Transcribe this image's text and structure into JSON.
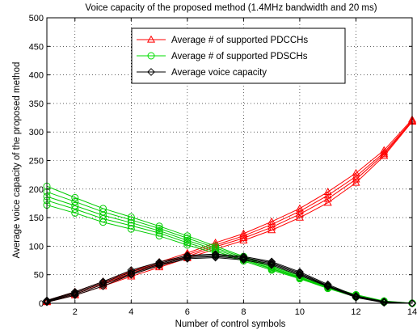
{
  "chart_data": {
    "type": "line",
    "title": "Voice capacity of the proposed method (1.4MHz bandwidth and 20 ms)",
    "xlabel": "Number of control symbols",
    "ylabel": "Average voice capacity of the proposed method",
    "xlim": [
      1,
      14
    ],
    "ylim": [
      0,
      500
    ],
    "xticks": [
      2,
      4,
      6,
      8,
      10,
      12,
      14
    ],
    "yticks": [
      0,
      50,
      100,
      150,
      200,
      250,
      300,
      350,
      400,
      450,
      500
    ],
    "grid": true,
    "legend_position": "top-center",
    "x": [
      1,
      2,
      3,
      4,
      5,
      6,
      7,
      8,
      9,
      10,
      11,
      12,
      13,
      14
    ],
    "legend": [
      {
        "label": "Average # of supported PDCCHs",
        "color": "#ff0000",
        "marker": "triangle"
      },
      {
        "label": "Average # of supported PDSCHs",
        "color": "#00dd00",
        "marker": "circle"
      },
      {
        "label": "Average voice capacity",
        "color": "#000000",
        "marker": "diamond"
      }
    ],
    "series": [
      {
        "group": "PDCCH",
        "color": "#ff0000",
        "marker": "triangle",
        "values": [
          5,
          20,
          38,
          56,
          72,
          88,
          106,
          122,
          143,
          166,
          195,
          228,
          268,
          322
        ]
      },
      {
        "group": "PDCCH",
        "color": "#ff0000",
        "marker": "triangle",
        "values": [
          4,
          18,
          35,
          53,
          69,
          85,
          102,
          118,
          138,
          161,
          189,
          222,
          264,
          320
        ]
      },
      {
        "group": "PDCCH",
        "color": "#ff0000",
        "marker": "triangle",
        "values": [
          3,
          16,
          33,
          50,
          66,
          82,
          99,
          114,
          133,
          156,
          183,
          217,
          261,
          319
        ]
      },
      {
        "group": "PDCCH",
        "color": "#ff0000",
        "marker": "triangle",
        "values": [
          2,
          14,
          30,
          47,
          63,
          79,
          95,
          110,
          128,
          150,
          176,
          211,
          258,
          318
        ]
      },
      {
        "group": "PDSCH",
        "color": "#00cc00",
        "marker": "circle",
        "values": [
          205,
          185,
          166,
          151,
          135,
          118,
          100,
          82,
          65,
          48,
          30,
          15,
          4,
          0
        ]
      },
      {
        "group": "PDSCH",
        "color": "#00cc00",
        "marker": "circle",
        "values": [
          195,
          178,
          160,
          146,
          131,
          114,
          97,
          80,
          63,
          46,
          29,
          14,
          3,
          0
        ]
      },
      {
        "group": "PDSCH",
        "color": "#00cc00",
        "marker": "circle",
        "values": [
          187,
          171,
          154,
          141,
          127,
          110,
          94,
          78,
          61,
          45,
          28,
          13,
          3,
          0
        ]
      },
      {
        "group": "PDSCH",
        "color": "#00cc00",
        "marker": "circle",
        "values": [
          180,
          165,
          148,
          136,
          123,
          106,
          91,
          76,
          60,
          44,
          27,
          12,
          2,
          0
        ]
      },
      {
        "group": "PDSCH",
        "color": "#00cc00",
        "marker": "circle",
        "values": [
          172,
          158,
          142,
          130,
          118,
          102,
          88,
          74,
          58,
          43,
          26,
          11,
          2,
          0
        ]
      },
      {
        "group": "Voice",
        "color": "#000000",
        "marker": "diamond",
        "values": [
          5,
          20,
          38,
          58,
          72,
          84,
          86,
          82,
          73,
          55,
          33,
          13,
          3,
          0
        ]
      },
      {
        "group": "Voice",
        "color": "#000000",
        "marker": "diamond",
        "values": [
          4,
          18,
          36,
          55,
          70,
          82,
          84,
          80,
          71,
          53,
          31,
          12,
          2,
          0
        ]
      },
      {
        "group": "Voice",
        "color": "#000000",
        "marker": "diamond",
        "values": [
          3,
          16,
          33,
          52,
          68,
          80,
          82,
          78,
          69,
          51,
          30,
          11,
          2,
          0
        ]
      },
      {
        "group": "Voice",
        "color": "#000000",
        "marker": "diamond",
        "values": [
          2,
          14,
          30,
          50,
          66,
          78,
          80,
          76,
          67,
          49,
          29,
          10,
          1,
          0
        ]
      }
    ]
  }
}
